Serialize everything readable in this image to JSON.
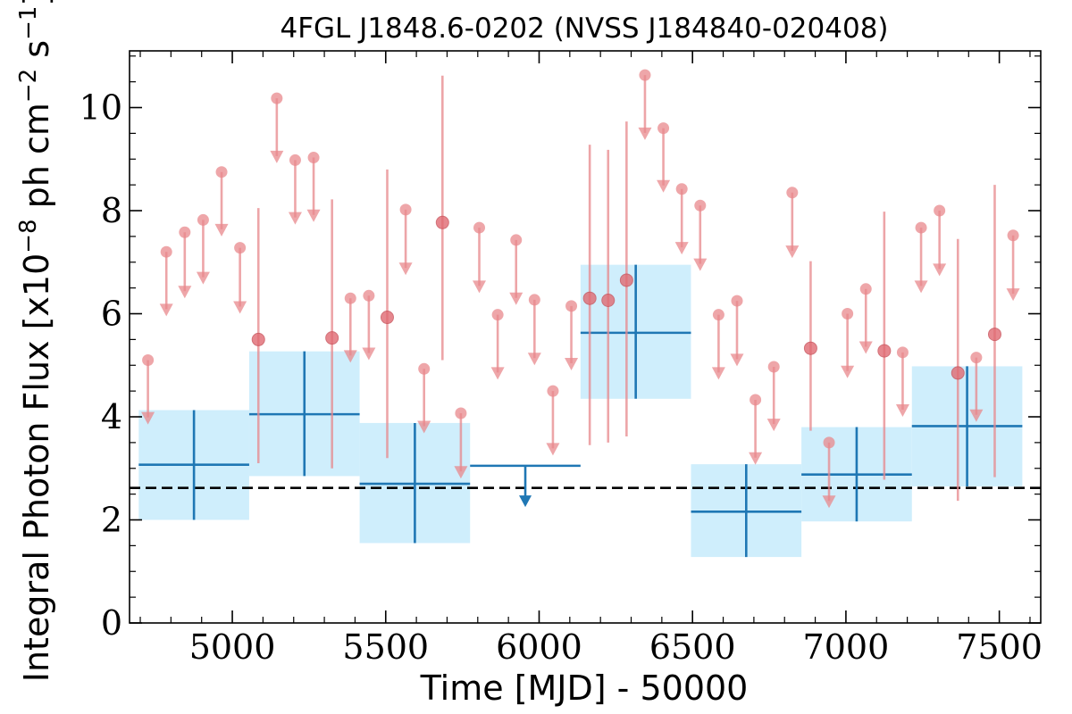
{
  "chart_data": {
    "type": "scatter",
    "title": "4FGL J1848.6-0202 (NVSS J184840-020408)",
    "xlabel": "Time [MJD] - 50000",
    "ylabel": "Integral Photon Flux [x10",
    "ylabel_exp1": "−8",
    "ylabel_mid": " ph cm",
    "ylabel_exp2": "−2",
    "ylabel_mid2": " s",
    "ylabel_exp3": "−1",
    "ylabel_end": "]",
    "xlim": [
      4665,
      7635
    ],
    "ylim": [
      0,
      11.1
    ],
    "x_ticks": [
      "5000",
      "5500",
      "6000",
      "6500",
      "7000",
      "7500"
    ],
    "y_ticks": [
      "0",
      "2",
      "4",
      "6",
      "8",
      "10"
    ],
    "reference_line": {
      "y": 2.62,
      "style": "dashed",
      "color": "#000000"
    },
    "colors": {
      "fine": "#e8888c",
      "coarse": "#1f77b4",
      "band": "#cfeefc"
    },
    "series": [
      {
        "role": "fine-bin upper limits",
        "points": [
          {
            "x": 4725,
            "y": 5.1,
            "lo": 3.85
          },
          {
            "x": 4785,
            "y": 7.2,
            "lo": 5.95
          },
          {
            "x": 4845,
            "y": 7.58,
            "lo": 6.3
          },
          {
            "x": 4905,
            "y": 7.82,
            "lo": 6.57
          },
          {
            "x": 4965,
            "y": 8.75,
            "lo": 7.5
          },
          {
            "x": 5025,
            "y": 7.28,
            "lo": 6.0
          },
          {
            "x": 5145,
            "y": 10.18,
            "lo": 8.92
          },
          {
            "x": 5205,
            "y": 8.98,
            "lo": 7.73
          },
          {
            "x": 5265,
            "y": 9.03,
            "lo": 7.78
          },
          {
            "x": 5385,
            "y": 6.3,
            "lo": 5.05
          },
          {
            "x": 5445,
            "y": 6.35,
            "lo": 5.1
          },
          {
            "x": 5565,
            "y": 8.02,
            "lo": 6.75
          },
          {
            "x": 5625,
            "y": 4.93,
            "lo": 3.68
          },
          {
            "x": 5745,
            "y": 4.07,
            "lo": 2.8
          },
          {
            "x": 5805,
            "y": 7.67,
            "lo": 6.4
          },
          {
            "x": 5865,
            "y": 5.98,
            "lo": 4.72
          },
          {
            "x": 5925,
            "y": 7.43,
            "lo": 6.17
          },
          {
            "x": 5985,
            "y": 6.27,
            "lo": 5.0
          },
          {
            "x": 6045,
            "y": 4.5,
            "lo": 3.25
          },
          {
            "x": 6105,
            "y": 6.15,
            "lo": 4.9
          },
          {
            "x": 6345,
            "y": 10.63,
            "lo": 9.37
          },
          {
            "x": 6405,
            "y": 9.6,
            "lo": 8.35
          },
          {
            "x": 6465,
            "y": 8.42,
            "lo": 7.15
          },
          {
            "x": 6525,
            "y": 8.1,
            "lo": 6.83
          },
          {
            "x": 6585,
            "y": 5.98,
            "lo": 4.72
          },
          {
            "x": 6645,
            "y": 6.25,
            "lo": 4.98
          },
          {
            "x": 6705,
            "y": 4.33,
            "lo": 3.07
          },
          {
            "x": 6765,
            "y": 4.97,
            "lo": 3.72
          },
          {
            "x": 6825,
            "y": 8.35,
            "lo": 7.08
          },
          {
            "x": 6945,
            "y": 3.5,
            "lo": 2.23
          },
          {
            "x": 7005,
            "y": 6.0,
            "lo": 4.75
          },
          {
            "x": 7065,
            "y": 6.48,
            "lo": 5.22
          },
          {
            "x": 7185,
            "y": 5.25,
            "lo": 4.0
          },
          {
            "x": 7245,
            "y": 7.67,
            "lo": 6.4
          },
          {
            "x": 7305,
            "y": 8.0,
            "lo": 6.73
          },
          {
            "x": 7425,
            "y": 5.15,
            "lo": 3.9
          },
          {
            "x": 7545,
            "y": 7.52,
            "lo": 6.25
          }
        ]
      },
      {
        "role": "fine-bin detections",
        "points": [
          {
            "x": 5085,
            "y": 5.5,
            "lo": 3.1,
            "hi": 8.05
          },
          {
            "x": 5325,
            "y": 5.53,
            "lo": 3.0,
            "hi": 8.22
          },
          {
            "x": 5505,
            "y": 5.93,
            "lo": 3.2,
            "hi": 8.8
          },
          {
            "x": 5685,
            "y": 7.77,
            "lo": 5.1,
            "hi": 10.62
          },
          {
            "x": 6165,
            "y": 6.3,
            "lo": 3.45,
            "hi": 9.28
          },
          {
            "x": 6225,
            "y": 6.26,
            "lo": 3.5,
            "hi": 9.18
          },
          {
            "x": 6285,
            "y": 6.65,
            "lo": 3.62,
            "hi": 9.73
          },
          {
            "x": 6885,
            "y": 5.33,
            "lo": 3.73,
            "hi": 7.02
          },
          {
            "x": 7125,
            "y": 5.28,
            "lo": 2.78,
            "hi": 7.98
          },
          {
            "x": 7365,
            "y": 4.85,
            "lo": 2.37,
            "hi": 7.45
          },
          {
            "x": 7485,
            "y": 5.6,
            "lo": 2.83,
            "hi": 8.5
          }
        ]
      },
      {
        "role": "coarse-bin detections",
        "bins": [
          {
            "x0": 4695,
            "x1": 5055,
            "y": 3.07,
            "lo": 2.0,
            "hi": 4.13
          },
          {
            "x0": 5055,
            "x1": 5415,
            "y": 4.05,
            "lo": 2.85,
            "hi": 5.27
          },
          {
            "x0": 5415,
            "x1": 5775,
            "y": 2.7,
            "lo": 1.55,
            "hi": 3.88
          },
          {
            "x0": 6135,
            "x1": 6495,
            "y": 5.63,
            "lo": 4.35,
            "hi": 6.95
          },
          {
            "x0": 6495,
            "x1": 6855,
            "y": 2.16,
            "lo": 1.28,
            "hi": 3.08
          },
          {
            "x0": 6855,
            "x1": 7215,
            "y": 2.88,
            "lo": 1.97,
            "hi": 3.8
          },
          {
            "x0": 7215,
            "x1": 7575,
            "y": 3.82,
            "lo": 2.65,
            "hi": 4.98
          }
        ]
      },
      {
        "role": "coarse-bin upper limits",
        "bins": [
          {
            "x0": 5775,
            "x1": 6135,
            "y": 3.05,
            "lo": 2.25
          }
        ]
      }
    ]
  }
}
